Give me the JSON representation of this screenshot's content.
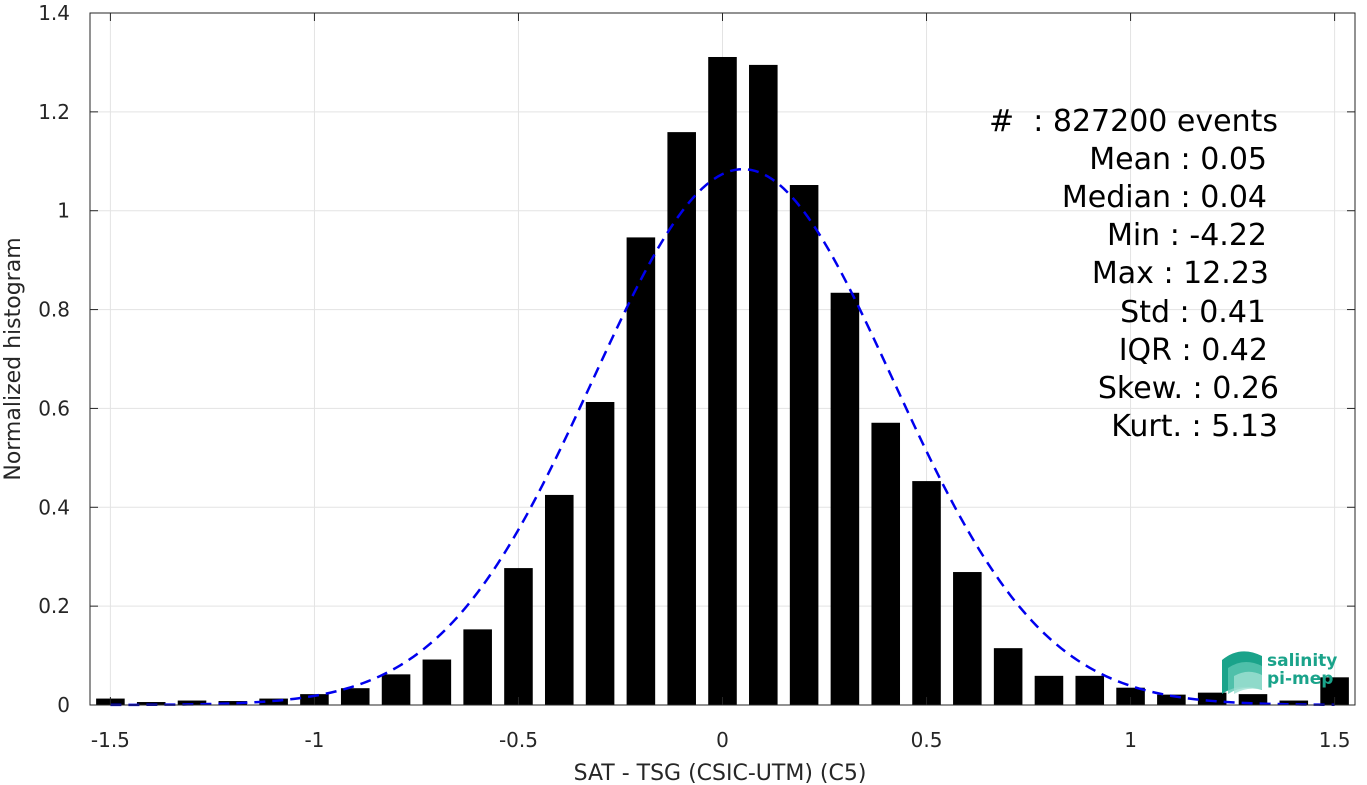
{
  "chart_data": {
    "type": "bar",
    "xlabel": "SAT - TSG (CSIC-UTM) (C5)",
    "ylabel": "Normalized histogram",
    "xlim": [
      -1.55,
      1.55
    ],
    "ylim": [
      0,
      1.4
    ],
    "xticks": [
      "-1.5",
      "-1",
      "-0.5",
      "0",
      "0.5",
      "1",
      "1.5"
    ],
    "xtick_values": [
      -1.5,
      -1,
      -0.5,
      0,
      0.5,
      1,
      1.5
    ],
    "yticks": [
      "0",
      "0.2",
      "0.4",
      "0.6",
      "0.8",
      "1",
      "1.2",
      "1.4"
    ],
    "ytick_values": [
      0,
      0.2,
      0.4,
      0.6,
      0.8,
      1,
      1.2,
      1.4
    ],
    "grid": true,
    "bar_color": "#000000",
    "bar_width": 0.07,
    "bins": [
      {
        "x": -1.5,
        "y": 0.013
      },
      {
        "x": -1.4,
        "y": 0.006
      },
      {
        "x": -1.3,
        "y": 0.009
      },
      {
        "x": -1.2,
        "y": 0.008
      },
      {
        "x": -1.1,
        "y": 0.013
      },
      {
        "x": -1.0,
        "y": 0.022
      },
      {
        "x": -0.9,
        "y": 0.034
      },
      {
        "x": -0.8,
        "y": 0.062
      },
      {
        "x": -0.7,
        "y": 0.092
      },
      {
        "x": -0.6,
        "y": 0.153
      },
      {
        "x": -0.5,
        "y": 0.277
      },
      {
        "x": -0.4,
        "y": 0.425
      },
      {
        "x": -0.3,
        "y": 0.613
      },
      {
        "x": -0.2,
        "y": 0.946
      },
      {
        "x": -0.1,
        "y": 1.159
      },
      {
        "x": 0.0,
        "y": 1.311
      },
      {
        "x": 0.1,
        "y": 1.295
      },
      {
        "x": 0.2,
        "y": 1.052
      },
      {
        "x": 0.3,
        "y": 0.834
      },
      {
        "x": 0.4,
        "y": 0.571
      },
      {
        "x": 0.5,
        "y": 0.453
      },
      {
        "x": 0.6,
        "y": 0.269
      },
      {
        "x": 0.7,
        "y": 0.115
      },
      {
        "x": 0.8,
        "y": 0.059
      },
      {
        "x": 0.9,
        "y": 0.059
      },
      {
        "x": 1.0,
        "y": 0.035
      },
      {
        "x": 1.1,
        "y": 0.021
      },
      {
        "x": 1.2,
        "y": 0.025
      },
      {
        "x": 1.3,
        "y": 0.022
      },
      {
        "x": 1.4,
        "y": 0.009
      },
      {
        "x": 1.5,
        "y": 0.056
      }
    ],
    "fit_curve": {
      "style": "dashed",
      "color": "#0000ee",
      "mean": 0.05,
      "std": 0.368,
      "x_range": [
        -1.5,
        1.5
      ]
    }
  },
  "stats": {
    "events": "#  : 827200 events",
    "mean": "Mean : 0.05",
    "median": "Median : 0.04",
    "min": "Min : -4.22",
    "max": "Max : 12.23",
    "std": "Std : 0.41",
    "iqr": "IQR : 0.42",
    "skew": "Skew. : 0.26",
    "kurt": "Kurt. : 5.13"
  },
  "logo": {
    "line1": "salinity",
    "line2": "pi-mep",
    "color": "#1aa38a"
  }
}
